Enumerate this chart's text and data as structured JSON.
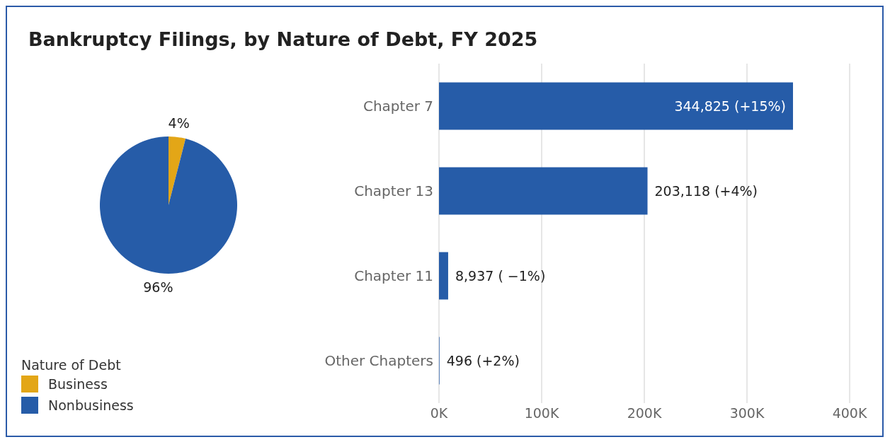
{
  "chart_data": [
    {
      "type": "pie",
      "title": "Bankruptcy Filings, by Nature of Debt, FY 2025",
      "legend_title": "Nature of Debt",
      "categories": [
        "Business",
        "Nonbusiness"
      ],
      "values": [
        4,
        96
      ],
      "colors": [
        "#e3a617",
        "#265ca8"
      ],
      "value_labels": [
        "4%",
        "96%"
      ],
      "legend": "bottom left"
    },
    {
      "type": "bar",
      "orientation": "horizontal",
      "categories": [
        "Chapter 7",
        "Chapter 13",
        "Chapter 11",
        "Other Chapters"
      ],
      "values": [
        344825,
        203118,
        8937,
        496
      ],
      "color": "#265ca8",
      "value_labels": [
        "344,825 (+15%)",
        "203,118 (+4%)",
        "8,937 ( −1%)",
        "496 (+2%)"
      ],
      "xlim": [
        0,
        400000
      ],
      "xticks": [
        {
          "value": 0,
          "label": "0K"
        },
        {
          "value": 100000,
          "label": "100K"
        },
        {
          "value": 200000,
          "label": "200K"
        },
        {
          "value": 300000,
          "label": "300K"
        },
        {
          "value": 400000,
          "label": "400K"
        }
      ],
      "grid": "x"
    }
  ]
}
